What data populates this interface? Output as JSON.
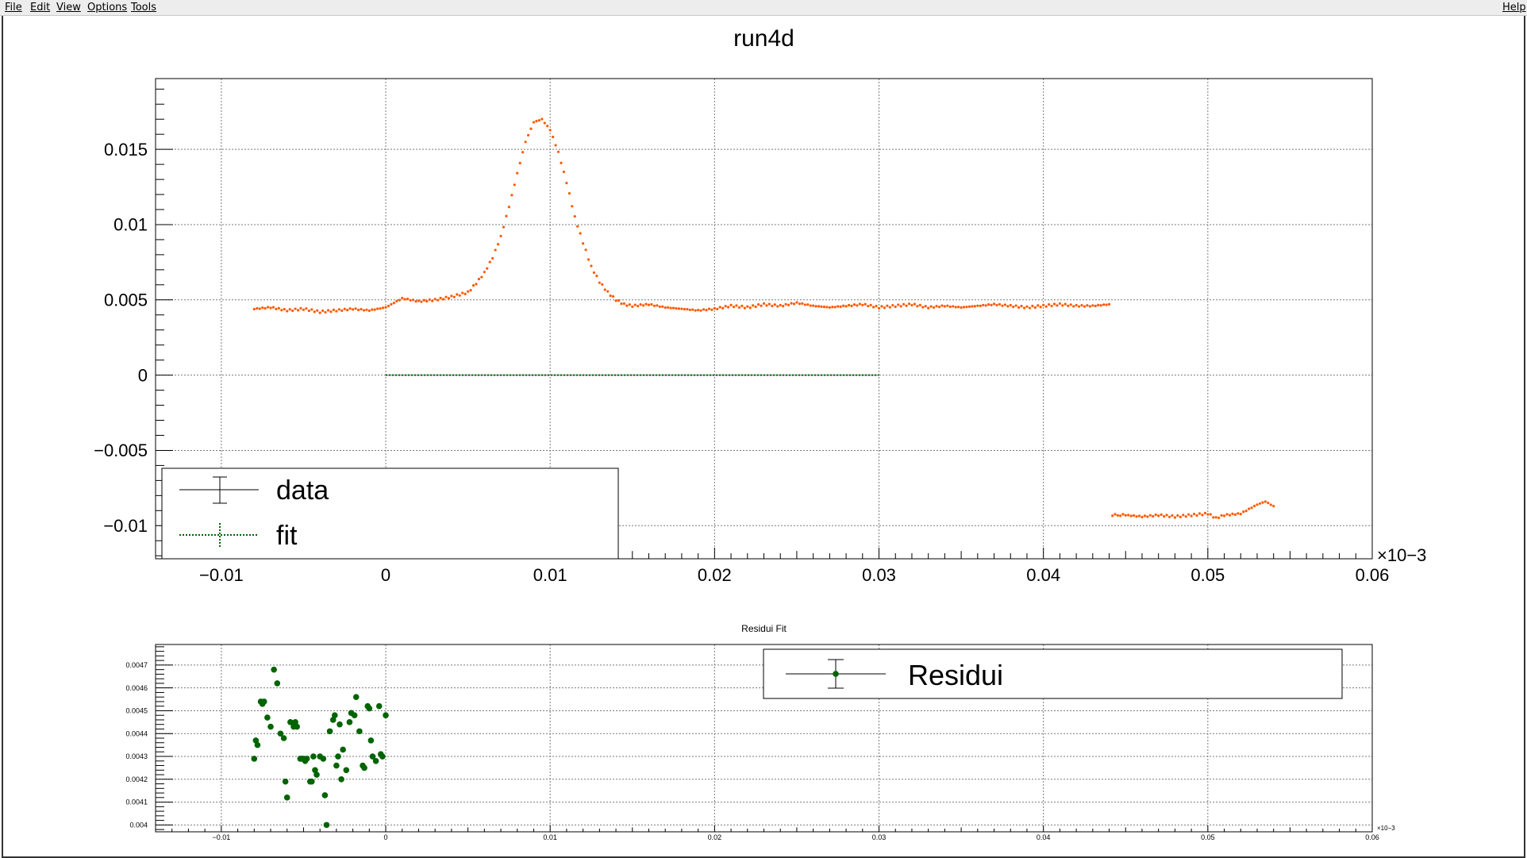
{
  "menu": {
    "file": "File",
    "edit": "Edit",
    "view": "View",
    "options": "Options",
    "tools": "Tools",
    "help": "Help"
  },
  "colors": {
    "data": "#ff5a00",
    "fit": "#006400",
    "residuals": "#006400",
    "grid": "#7a7a7a"
  },
  "chart_data": [
    {
      "type": "scatter",
      "title": "run4d",
      "xlim": [
        -0.014,
        0.06
      ],
      "ylim": [
        -0.0122,
        0.0197
      ],
      "x_ticks": [
        -0.01,
        0,
        0.01,
        0.02,
        0.03,
        0.04,
        0.05,
        0.06
      ],
      "x_tick_labels": [
        "−0.01",
        "0",
        "0.01",
        "0.02",
        "0.03",
        "0.04",
        "0.05",
        "0.06"
      ],
      "y_ticks": [
        -0.01,
        -0.005,
        0,
        0.005,
        0.01,
        0.015
      ],
      "y_tick_labels": [
        "−0.01",
        "−0.005",
        "0",
        "0.005",
        "0.01",
        "0.015"
      ],
      "x_exponent_label": "×10−3",
      "grid": true,
      "legend_position": "bottom-left",
      "legend": [
        "data",
        "fit"
      ],
      "series": [
        {
          "name": "data",
          "x": [
            -0.008,
            -0.007,
            -0.006,
            -0.005,
            -0.004,
            -0.003,
            -0.002,
            -0.001,
            0,
            0.001,
            0.002,
            0.003,
            0.004,
            0.005,
            0.0055,
            0.006,
            0.0065,
            0.007,
            0.0075,
            0.008,
            0.0085,
            0.009,
            0.0095,
            0.01,
            0.0105,
            0.011,
            0.0115,
            0.012,
            0.0125,
            0.013,
            0.0135,
            0.014,
            0.0145,
            0.015,
            0.016,
            0.017,
            0.018,
            0.019,
            0.02,
            0.021,
            0.022,
            0.023,
            0.024,
            0.025,
            0.026,
            0.027,
            0.028,
            0.029,
            0.03,
            0.031,
            0.032,
            0.033,
            0.034,
            0.035,
            0.036,
            0.037,
            0.038,
            0.039,
            0.04,
            0.041,
            0.042,
            0.043,
            0.044,
            0.0442,
            0.045,
            0.046,
            0.047,
            0.048,
            0.049,
            0.05,
            0.0505,
            0.051,
            0.052,
            0.0525,
            0.053,
            0.0535,
            0.054
          ],
          "y": [
            0.0044,
            0.0045,
            0.0043,
            0.0044,
            0.0042,
            0.0043,
            0.0044,
            0.0043,
            0.0045,
            0.0051,
            0.0049,
            0.005,
            0.0052,
            0.0055,
            0.0061,
            0.0068,
            0.0078,
            0.0092,
            0.0112,
            0.0134,
            0.0155,
            0.0168,
            0.017,
            0.0163,
            0.0148,
            0.0128,
            0.0105,
            0.0088,
            0.0072,
            0.0062,
            0.0055,
            0.005,
            0.0047,
            0.0046,
            0.0047,
            0.0045,
            0.0044,
            0.0043,
            0.0044,
            0.0046,
            0.0045,
            0.0047,
            0.0046,
            0.0048,
            0.0046,
            0.0045,
            0.0046,
            0.0047,
            0.0045,
            0.0046,
            0.0047,
            0.0045,
            0.0046,
            0.0045,
            0.0046,
            0.0047,
            0.0046,
            0.0045,
            0.0046,
            0.0047,
            0.0046,
            0.0046,
            0.0047,
            -0.0093,
            -0.0093,
            -0.0094,
            -0.0093,
            -0.0094,
            -0.0093,
            -0.0092,
            -0.0095,
            -0.0093,
            -0.0092,
            -0.0089,
            -0.0086,
            -0.0084,
            -0.0087
          ]
        },
        {
          "name": "fit",
          "x": [
            0,
            0.005,
            0.01,
            0.015,
            0.02,
            0.025,
            0.03
          ],
          "y": [
            0,
            0,
            0,
            0,
            0,
            0,
            0
          ]
        }
      ]
    },
    {
      "type": "scatter",
      "title": "Residui Fit",
      "xlim": [
        -0.014,
        0.06
      ],
      "ylim": [
        0.00397,
        0.00479
      ],
      "x_ticks": [
        -0.01,
        0,
        0.01,
        0.02,
        0.03,
        0.04,
        0.05,
        0.06
      ],
      "x_tick_labels": [
        "−0.01",
        "0",
        "0.01",
        "0.02",
        "0.03",
        "0.04",
        "0.05",
        "0.06"
      ],
      "y_ticks": [
        0.004,
        0.0041,
        0.0042,
        0.0043,
        0.0044,
        0.0045,
        0.0046,
        0.0047
      ],
      "y_tick_labels": [
        "0.004",
        "0.0041",
        "0.0042",
        "0.0043",
        "0.0044",
        "0.0045",
        "0.0046",
        "0.0047"
      ],
      "x_exponent_label": "×10−3",
      "grid": true,
      "legend_position": "top-right",
      "legend": [
        "Residui"
      ],
      "series": [
        {
          "name": "Residui",
          "x": [
            -0.008,
            -0.0079,
            -0.0078,
            -0.0076,
            -0.0075,
            -0.0074,
            -0.0072,
            -0.007,
            -0.0068,
            -0.0066,
            -0.0064,
            -0.0062,
            -0.0061,
            -0.006,
            -0.0058,
            -0.0056,
            -0.0055,
            -0.0054,
            -0.0052,
            -0.0051,
            -0.005,
            -0.0049,
            -0.0048,
            -0.0046,
            -0.0045,
            -0.0044,
            -0.0043,
            -0.0042,
            -0.004,
            -0.0038,
            -0.0037,
            -0.0036,
            -0.0034,
            -0.0032,
            -0.0031,
            -0.003,
            -0.0029,
            -0.0028,
            -0.0027,
            -0.0026,
            -0.0024,
            -0.0022,
            -0.0021,
            -0.0019,
            -0.0018,
            -0.0016,
            -0.0014,
            -0.0013,
            -0.0011,
            -0.001,
            -0.0009,
            -0.0008,
            -0.0006,
            -0.0004,
            -0.0003,
            -0.0002,
            0
          ],
          "y": [
            0.00429,
            0.00437,
            0.00435,
            0.00454,
            0.00453,
            0.00454,
            0.00447,
            0.00443,
            0.00468,
            0.00462,
            0.0044,
            0.00438,
            0.00419,
            0.00412,
            0.00445,
            0.00443,
            0.00445,
            0.00443,
            0.00429,
            0.00429,
            0.00429,
            0.00428,
            0.00429,
            0.00419,
            0.00419,
            0.0043,
            0.00424,
            0.00422,
            0.0043,
            0.00429,
            0.00413,
            0.004,
            0.00441,
            0.00446,
            0.00448,
            0.00426,
            0.0043,
            0.00444,
            0.0042,
            0.00433,
            0.00424,
            0.00445,
            0.00449,
            0.00448,
            0.00456,
            0.00441,
            0.00426,
            0.00425,
            0.00452,
            0.00451,
            0.00437,
            0.0043,
            0.00428,
            0.00452,
            0.00431,
            0.0043,
            0.00448
          ]
        }
      ]
    }
  ]
}
